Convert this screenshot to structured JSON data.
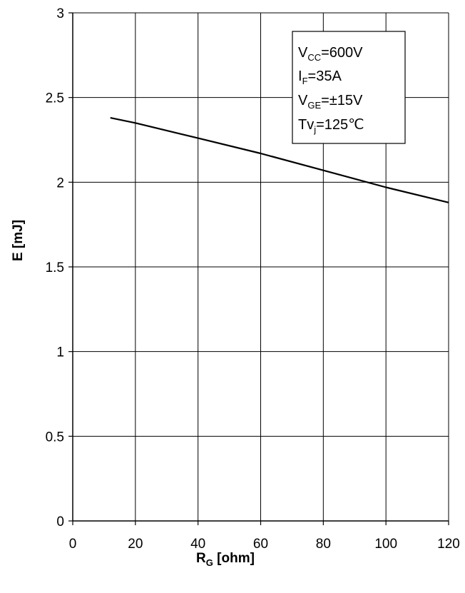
{
  "chart_data": {
    "type": "line",
    "xlabel": {
      "main": "R",
      "sub": "G",
      "unit": " [ohm]"
    },
    "ylabel": "E  [mJ]",
    "xlim": [
      0,
      120
    ],
    "ylim": [
      0,
      3
    ],
    "xticks": [
      0,
      20,
      40,
      60,
      80,
      100,
      120
    ],
    "yticks": [
      0,
      0.5,
      1,
      1.5,
      2,
      2.5,
      3
    ],
    "ytick_labels": [
      "0",
      "0.5",
      "1",
      "1.5",
      "2",
      "2.5",
      "3"
    ],
    "grid": true,
    "legend_position": "top-right",
    "conditions": [
      {
        "main": "V",
        "sub": "CC",
        "rest": "=600V"
      },
      {
        "main": "I",
        "sub": "F",
        "rest": "=35A"
      },
      {
        "main": "V",
        "sub": "GE",
        "rest": "=±15V"
      },
      {
        "main": "Tv",
        "sub": "j",
        "rest": "=125℃"
      }
    ],
    "series": [
      {
        "color": "#000000",
        "x": [
          12,
          20,
          40,
          60,
          80,
          100,
          120
        ],
        "y": [
          2.38,
          2.35,
          2.26,
          2.17,
          2.07,
          1.97,
          1.88
        ]
      }
    ]
  }
}
